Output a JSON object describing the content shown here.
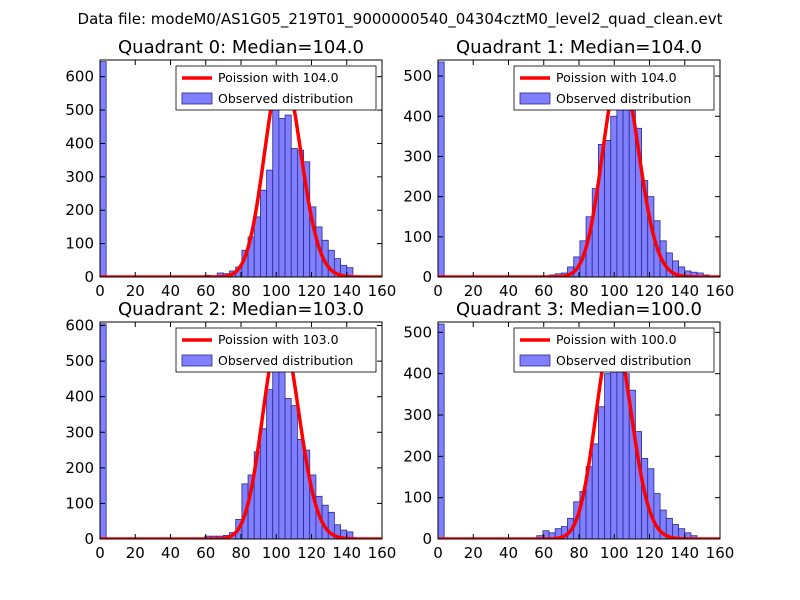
{
  "figure": {
    "suptitle": "Data file: modeM0/AS1G05_219T01_9000000540_04304cztM0_level2_quad_clean.evt",
    "colors": {
      "bar_fill": "#7f7fff",
      "bar_edge": "#2a2a8c",
      "poisson_line": "#ff0000",
      "axes": "#000000"
    }
  },
  "chart_data": [
    {
      "type": "bar",
      "title": "Quadrant 0: Median=104.0",
      "xlabel": "",
      "ylabel": "",
      "xlim": [
        0,
        160
      ],
      "ylim": [
        0,
        650
      ],
      "xticks": [
        0,
        20,
        40,
        60,
        80,
        100,
        120,
        140,
        160
      ],
      "yticks": [
        0,
        100,
        200,
        300,
        400,
        500,
        600
      ],
      "legend": {
        "location": "upper right",
        "entries": [
          "Poission with 104.0",
          "Observed distribution"
        ]
      },
      "line": {
        "name": "Poission with 104.0",
        "mean": 104.0,
        "peak": 620
      },
      "series": [
        {
          "name": "Observed distribution",
          "bin_width": 3.5,
          "bins": [
            0,
            59.5,
            63,
            66.5,
            70,
            73.5,
            77,
            80.5,
            84,
            87.5,
            91,
            94.5,
            98,
            101.5,
            105,
            108.5,
            112,
            115.5,
            119,
            122.5,
            126,
            129.5,
            133,
            136.5,
            140
          ],
          "values": [
            645,
            5,
            3,
            12,
            10,
            18,
            30,
            80,
            120,
            180,
            260,
            320,
            615,
            475,
            485,
            385,
            380,
            345,
            210,
            150,
            110,
            80,
            55,
            35,
            28
          ]
        }
      ]
    },
    {
      "type": "bar",
      "title": "Quadrant 1: Median=104.0",
      "xlabel": "",
      "ylabel": "",
      "xlim": [
        0,
        160
      ],
      "ylim": [
        0,
        540
      ],
      "xticks": [
        0,
        20,
        40,
        60,
        80,
        100,
        120,
        140,
        160
      ],
      "yticks": [
        0,
        100,
        200,
        300,
        400,
        500
      ],
      "legend": {
        "location": "upper right",
        "entries": [
          "Poission with 104.0",
          "Observed distribution"
        ]
      },
      "line": {
        "name": "Poission with 104.0",
        "mean": 104.0,
        "peak": 515
      },
      "series": [
        {
          "name": "Observed distribution",
          "bin_width": 3.5,
          "bins": [
            0,
            63,
            66.5,
            70,
            73.5,
            77,
            80.5,
            84,
            87.5,
            91,
            94.5,
            98,
            101.5,
            105,
            108.5,
            112,
            115.5,
            119,
            122.5,
            126,
            129.5,
            133,
            136.5,
            140,
            143.5,
            147,
            150.5
          ],
          "values": [
            535,
            5,
            8,
            10,
            25,
            50,
            90,
            150,
            220,
            330,
            340,
            400,
            440,
            440,
            505,
            370,
            240,
            200,
            140,
            90,
            60,
            40,
            25,
            15,
            12,
            10,
            5
          ]
        }
      ]
    },
    {
      "type": "bar",
      "title": "Quadrant 2: Median=103.0",
      "xlabel": "",
      "ylabel": "",
      "xlim": [
        0,
        160
      ],
      "ylim": [
        0,
        610
      ],
      "xticks": [
        0,
        20,
        40,
        60,
        80,
        100,
        120,
        140,
        160
      ],
      "yticks": [
        0,
        100,
        200,
        300,
        400,
        500,
        600
      ],
      "legend": {
        "location": "upper right",
        "entries": [
          "Poission with 103.0",
          "Observed distribution"
        ]
      },
      "line": {
        "name": "Poission with 103.0",
        "mean": 103.0,
        "peak": 585
      },
      "series": [
        {
          "name": "Observed distribution",
          "bin_width": 3.5,
          "bins": [
            0,
            59.5,
            63,
            66.5,
            70,
            73.5,
            77,
            80.5,
            84,
            87.5,
            91,
            94.5,
            98,
            101.5,
            105,
            108.5,
            112,
            115.5,
            119,
            122.5,
            126,
            129.5,
            133,
            136.5,
            140
          ],
          "values": [
            605,
            8,
            8,
            8,
            10,
            18,
            55,
            155,
            180,
            245,
            310,
            420,
            520,
            530,
            395,
            375,
            280,
            250,
            180,
            120,
            95,
            75,
            40,
            25,
            20
          ]
        }
      ]
    },
    {
      "type": "bar",
      "title": "Quadrant 3: Median=100.0",
      "xlabel": "",
      "ylabel": "",
      "xlim": [
        0,
        160
      ],
      "ylim": [
        0,
        525
      ],
      "xticks": [
        0,
        20,
        40,
        60,
        80,
        100,
        120,
        140,
        160
      ],
      "yticks": [
        0,
        100,
        200,
        300,
        400,
        500
      ],
      "legend": {
        "location": "upper right",
        "entries": [
          "Poission with 100.0",
          "Observed distribution"
        ]
      },
      "line": {
        "name": "Poission with 100.0",
        "mean": 100.0,
        "peak": 500
      },
      "series": [
        {
          "name": "Observed distribution",
          "bin_width": 3.5,
          "bins": [
            0,
            56,
            59.5,
            63,
            66.5,
            70,
            73.5,
            77,
            80.5,
            84,
            87.5,
            91,
            94.5,
            98,
            101.5,
            105,
            108.5,
            112,
            115.5,
            119,
            122.5,
            126,
            129.5,
            133,
            136.5,
            140,
            143.5
          ],
          "values": [
            520,
            8,
            20,
            15,
            25,
            30,
            50,
            90,
            115,
            175,
            230,
            320,
            400,
            455,
            445,
            400,
            360,
            260,
            195,
            170,
            110,
            70,
            50,
            35,
            25,
            15,
            8
          ]
        }
      ]
    }
  ]
}
